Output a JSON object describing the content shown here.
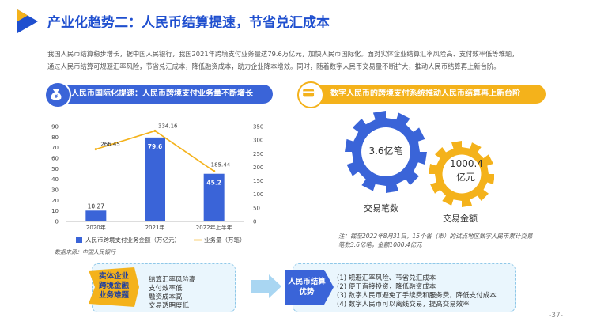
{
  "header": {
    "title": "产业化趋势二：人民币结算提速，节省兑汇成本",
    "intro": [
      "我国人民币结算稳步增长，据中国人民银行，我国2021年跨境支付业务量达79.6万亿元，加快人民币国际化。面对实体企业结算汇率风险高、支付效率低等难题，",
      "通过人民币结算可规避汇率风险，节省兑汇成本，降低融资成本，助力企业降本增效。同时，随着数字人民币交易量不断扩大，推动人民币结算再上新台阶。"
    ]
  },
  "left_panel": {
    "heading": "人民币国际化提速：人民币跨境支付业务量不断增长",
    "source": "数据来源：中国人民银行"
  },
  "chart_data": {
    "type": "bar",
    "categories": [
      "2020年",
      "2021年",
      "2022年上半年"
    ],
    "series": [
      {
        "name": "人民币跨境支付业务金额（万亿元）",
        "type": "bar",
        "axis": "left",
        "values": [
          10.27,
          79.6,
          45.2
        ],
        "color": "#3a64d8"
      },
      {
        "name": "业务量（万笔）",
        "type": "line",
        "axis": "right",
        "values": [
          266.45,
          334.16,
          185.44
        ],
        "color": "#f4b21b"
      }
    ],
    "y_left": {
      "ticks": [
        0,
        10,
        20,
        30,
        40,
        50,
        60,
        70,
        80,
        90
      ],
      "range": [
        0,
        90
      ]
    },
    "y_right": {
      "ticks": [
        0,
        50,
        100,
        150,
        200,
        250,
        300,
        350
      ],
      "range": [
        0,
        350
      ]
    },
    "bar_labels": [
      "10.27",
      "79.6",
      "45.2"
    ],
    "line_labels": [
      "266.45",
      "334.16",
      "185.44"
    ],
    "grid": false,
    "legend": "bottom"
  },
  "right_panel": {
    "heading": "数字人民币的跨境支付系统推动人民币结算再上新台阶",
    "gear_blue": {
      "value": "3.6亿笔",
      "label": "交易笔数",
      "color": "#3a64d8"
    },
    "gear_yellow": {
      "value_line1": "1000.4",
      "value_line2": "亿元",
      "label": "交易金额",
      "color": "#f4b21b"
    },
    "note": "注：截至2022年8月31日，15个省（市）的试点地区数字人民币累计交易笔数3.6亿笔，金额1000.4亿元"
  },
  "bottom_left": {
    "tag": [
      "实体企业",
      "跨境金融",
      "业务难题"
    ],
    "items": [
      "结算汇率风险高",
      "支付效率低",
      "融资成本高",
      "交易透明度低"
    ]
  },
  "bottom_right": {
    "tag": [
      "人民币结算",
      "优势"
    ],
    "items": [
      "(1)  规避汇率风险、节省兑汇成本",
      "(2)  便于直接投资，降低融资成本",
      "(3)  数字人民币避免了手续费和服务费，降低支付成本",
      "(4)  数字人民币可以离线交易，提高交易效率"
    ]
  },
  "footer": {
    "page": "-37-"
  }
}
